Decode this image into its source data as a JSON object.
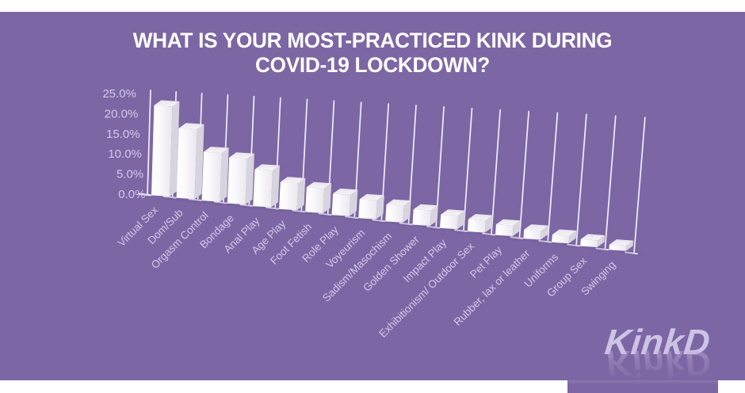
{
  "title": {
    "line1": "WHAT IS YOUR MOST-PRACTICED KINK DURING",
    "line2": "COVID-19 LOCKDOWN?",
    "color": "#ffffff"
  },
  "logo": {
    "text": "KinkD",
    "color": "#cdc3e5"
  },
  "colors": {
    "panel_background": "#7d66a4",
    "frame_band": "#ffffff",
    "bar_front": "#ffffff",
    "bar_side": "#d8d4df",
    "bar_top": "#efedf3",
    "gridline": "#f2eef9",
    "axis_label": "#d3c9ea",
    "shadow": "#4d3a78"
  },
  "chart_data": {
    "type": "bar",
    "style": "3d-perspective",
    "title": "WHAT IS YOUR MOST-PRACTICED KINK DURING COVID-19 LOCKDOWN?",
    "categories": [
      "Virtual Sex",
      "Dom/Sub",
      "Orgasm Control",
      "Bondage",
      "Anal Play",
      "Age Play",
      "Foot Fetish",
      "Role Play",
      "Voyeurism",
      "Sadism/Masochism",
      "Golden Shower",
      "Impact Play",
      "Exhibitionism/ Outdoor Sex",
      "Pet Play",
      "Rubber, lax or leather",
      "Uniforms",
      "Group Sex",
      "Swinging"
    ],
    "values": [
      21.5,
      16.5,
      11.4,
      10.6,
      8.4,
      6.1,
      5.5,
      4.7,
      4.1,
      3.6,
      3.2,
      2.8,
      2.5,
      2.1,
      1.8,
      1.5,
      1.3,
      1.0
    ],
    "unit": "%",
    "ylabel": "",
    "xlabel": "",
    "ylim": [
      0,
      25
    ],
    "yticks": [
      "25.0%",
      "20.0%",
      "15.0%",
      "10.0%",
      "5.0%",
      "0.0%"
    ],
    "grid": true,
    "legend": false
  }
}
